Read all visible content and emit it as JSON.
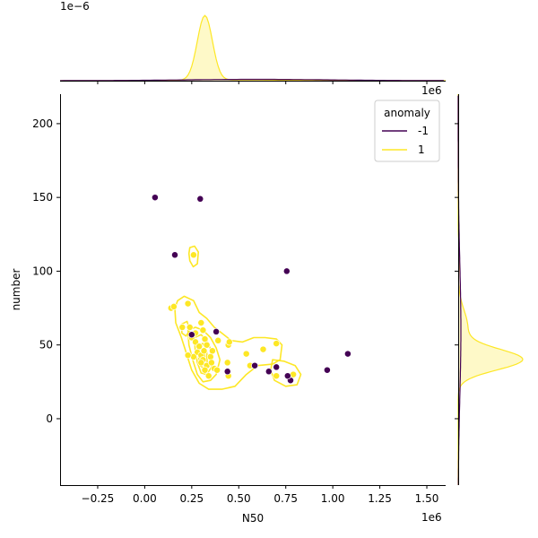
{
  "chart_data": {
    "type": "scatter",
    "title": "",
    "xlabel": "N50",
    "ylabel": "number",
    "x_exponent_label": "1e6",
    "y_exponent_label_right_marginal": "1e6",
    "top_marginal_exponent_label": "1e−6",
    "xlim": [
      -450000,
      1600000
    ],
    "ylim": [
      -45,
      220
    ],
    "x_ticks": [
      -250000,
      0,
      250000,
      500000,
      750000,
      1000000,
      1250000,
      1500000
    ],
    "x_tick_labels": [
      "−0.25",
      "0.00",
      "0.25",
      "0.50",
      "0.75",
      "1.00",
      "1.25",
      "1.50"
    ],
    "y_ticks": [
      0,
      50,
      100,
      150,
      200
    ],
    "y_tick_labels": [
      "0",
      "50",
      "100",
      "150",
      "200"
    ],
    "grid": false,
    "legend": {
      "title": "anomaly",
      "placement": "top-right",
      "entries": [
        {
          "label": "-1",
          "color": "#440154"
        },
        {
          "label": "1",
          "color": "#fde725"
        }
      ]
    },
    "series": [
      {
        "name": "-1",
        "color": "#440154",
        "points": [
          [
            55000,
            150
          ],
          [
            295000,
            149
          ],
          [
            160000,
            111
          ],
          [
            755000,
            100
          ],
          [
            380000,
            59
          ],
          [
            250000,
            57
          ],
          [
            1080000,
            44
          ],
          [
            440000,
            32
          ],
          [
            585000,
            36
          ],
          [
            660000,
            32
          ],
          [
            700000,
            35
          ],
          [
            970000,
            33
          ],
          [
            775000,
            26
          ],
          [
            760000,
            29
          ]
        ]
      },
      {
        "name": "1",
        "color": "#fde725",
        "points": [
          [
            260000,
            111
          ],
          [
            140000,
            75
          ],
          [
            155000,
            76
          ],
          [
            230000,
            78
          ],
          [
            200000,
            62
          ],
          [
            240000,
            62
          ],
          [
            270000,
            58
          ],
          [
            250000,
            55
          ],
          [
            300000,
            65
          ],
          [
            310000,
            60
          ],
          [
            270000,
            52
          ],
          [
            290000,
            49
          ],
          [
            280000,
            45
          ],
          [
            300000,
            43
          ],
          [
            260000,
            42
          ],
          [
            320000,
            54
          ],
          [
            330000,
            50
          ],
          [
            310000,
            40
          ],
          [
            300000,
            38
          ],
          [
            330000,
            36
          ],
          [
            320000,
            33
          ],
          [
            340000,
            29
          ],
          [
            350000,
            42
          ],
          [
            360000,
            46
          ],
          [
            355000,
            38
          ],
          [
            370000,
            34
          ],
          [
            385000,
            33
          ],
          [
            390000,
            53
          ],
          [
            445000,
            50
          ],
          [
            440000,
            38
          ],
          [
            445000,
            29
          ],
          [
            450000,
            52
          ],
          [
            540000,
            44
          ],
          [
            560000,
            36
          ],
          [
            630000,
            47
          ],
          [
            700000,
            51
          ],
          [
            700000,
            29
          ],
          [
            790000,
            30
          ],
          [
            230000,
            43
          ],
          [
            315000,
            46
          ]
        ]
      }
    ],
    "kde_contours": "yellow density contours around anomaly=1 cluster",
    "marginals": {
      "top": "KDE of N50 per anomaly, yellow sharp peak near 0.32e6, purple nearly flat",
      "right": "KDE of number per anomaly, yellow peak near 40, purple nearly flat"
    }
  }
}
